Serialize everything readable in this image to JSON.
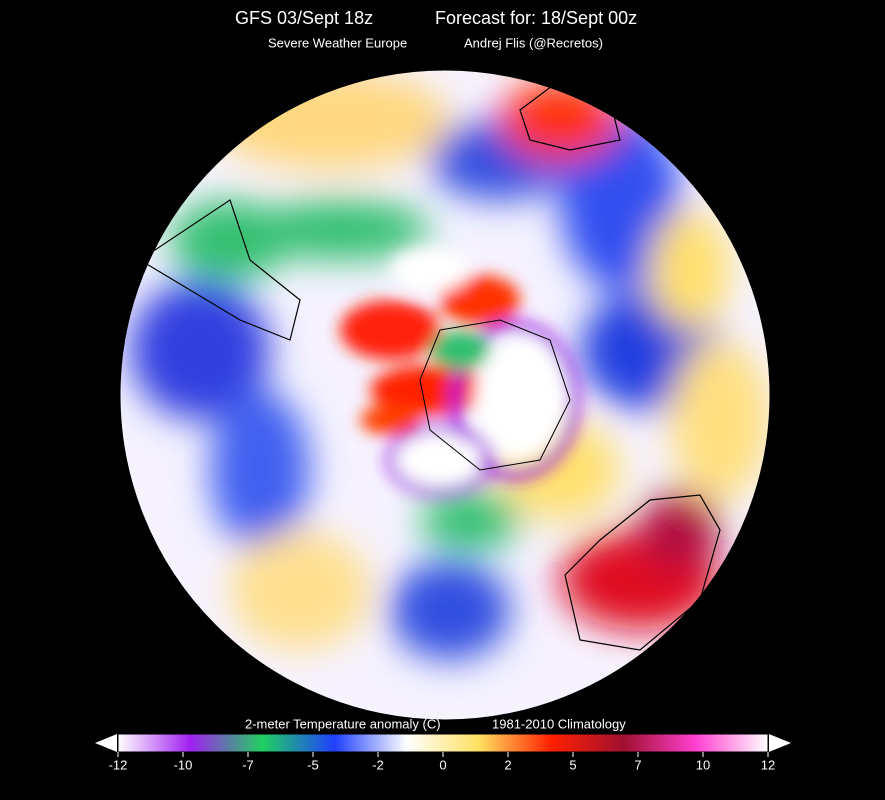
{
  "header": {
    "title_left": "GFS 03/Sept 18z",
    "title_right": "Forecast for: 18/Sept 00z",
    "subtitle_left": "Severe Weather Europe",
    "subtitle_right": "Andrej Flis (@Recretos)"
  },
  "colorbar": {
    "label": "2-meter Temperature anomaly (C)",
    "climatology": "1981-2010 Climatology",
    "ticks": [
      -12,
      -10,
      -7,
      -5,
      -2,
      0,
      2,
      5,
      7,
      10,
      12
    ],
    "colors": [
      "#ffffff",
      "#a020f0",
      "#20d060",
      "#2040ff",
      "#ffffff",
      "#ffe060",
      "#ff2000",
      "#a01030",
      "#ff40d0",
      "#ffffff"
    ]
  }
}
